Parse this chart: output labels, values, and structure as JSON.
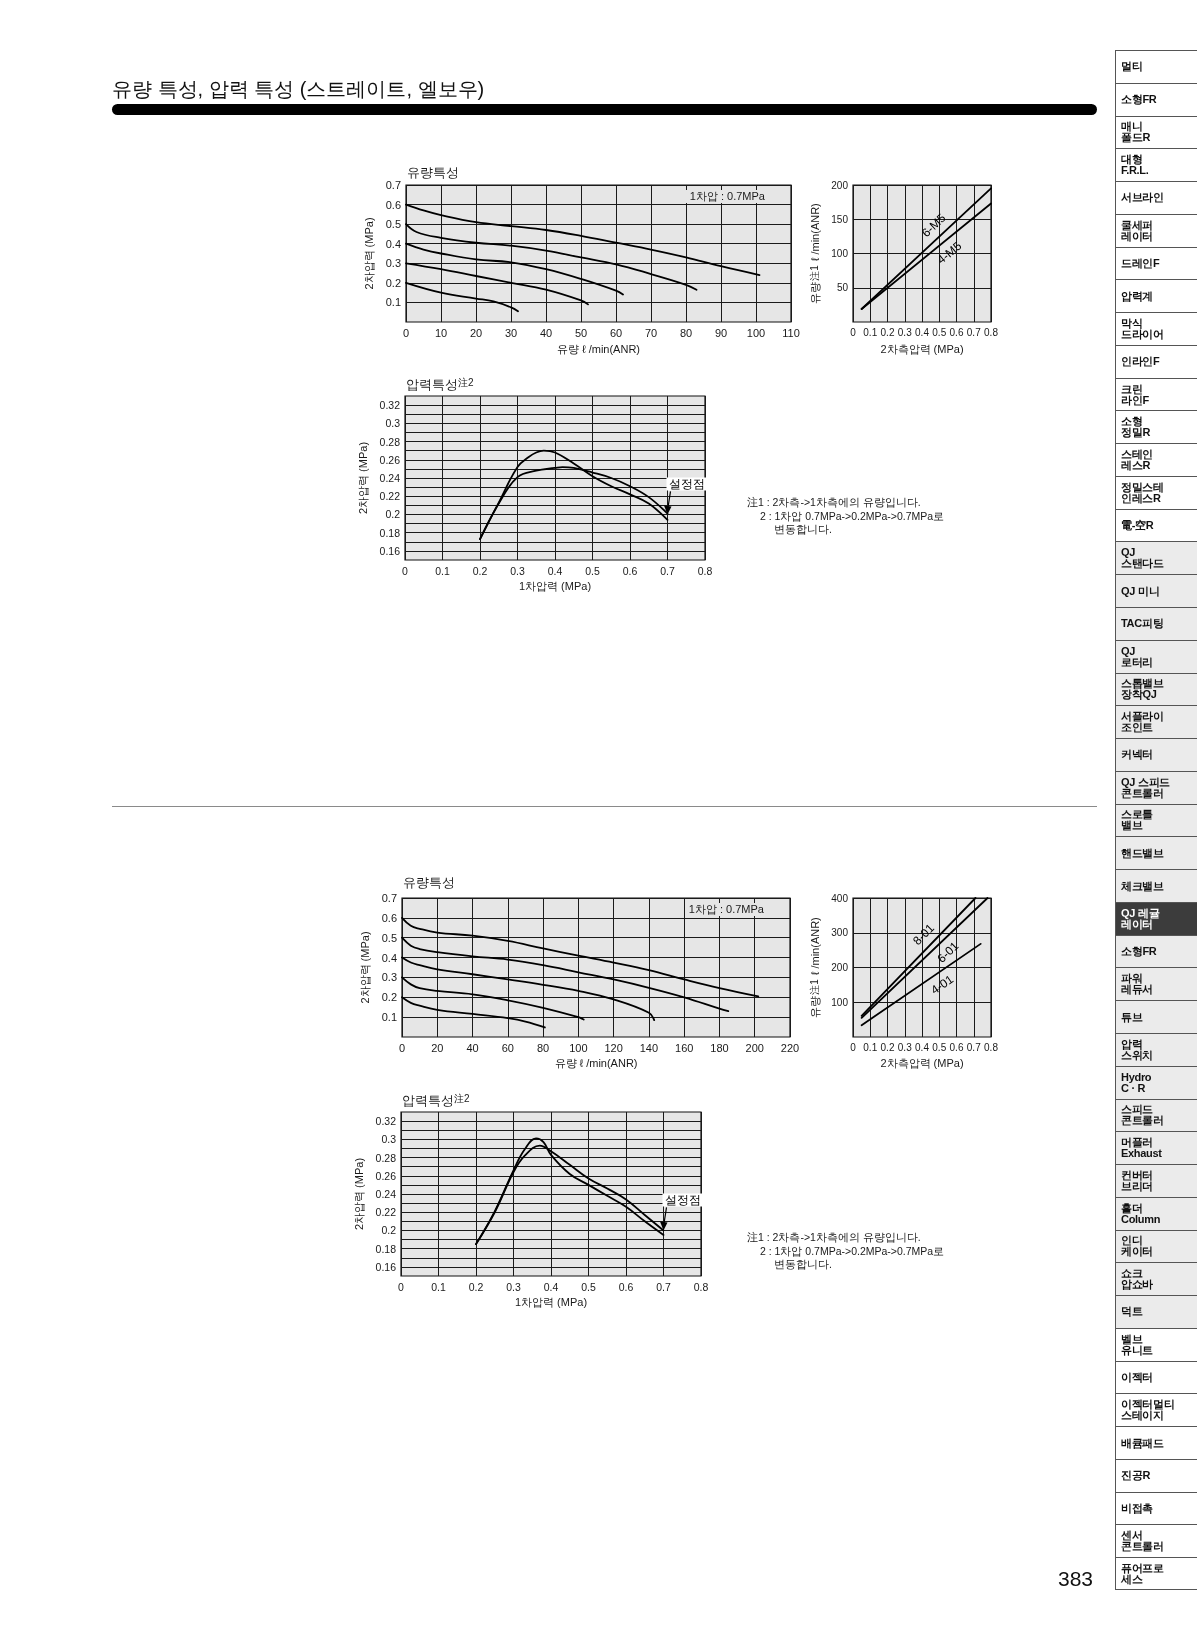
{
  "chart_data": [
    {
      "type": "other",
      "title": "유량 특성, 압력 특성 (스트레이트, 엘보우)"
    },
    {
      "type": "line",
      "title": "유량특성",
      "xlabel": "유량 ℓ /min(ANR)",
      "ylabel": "2차압력 (MPa)",
      "annotations": [
        "1차압 : 0.7MPa"
      ],
      "xlim": [
        0,
        110
      ],
      "xticks": [
        0,
        10,
        20,
        30,
        40,
        50,
        60,
        70,
        80,
        90,
        100,
        110
      ],
      "ylim": [
        0,
        0.7
      ],
      "yticks": [
        0.1,
        0.2,
        0.3,
        0.4,
        0.5,
        0.6,
        0.7
      ],
      "grid": true,
      "series": [
        {
          "color": "#000000",
          "x": [
            0,
            5,
            10,
            20,
            30,
            40,
            50,
            60,
            70,
            80,
            90,
            101
          ],
          "values": [
            0.6,
            0.57,
            0.546,
            0.51,
            0.49,
            0.47,
            0.44,
            0.405,
            0.37,
            0.33,
            0.285,
            0.24
          ]
        },
        {
          "color": "#000000",
          "x": [
            0,
            3,
            10,
            20,
            30,
            40,
            50,
            60,
            70,
            80,
            83
          ],
          "values": [
            0.5,
            0.46,
            0.43,
            0.405,
            0.39,
            0.365,
            0.33,
            0.295,
            0.245,
            0.19,
            0.165
          ]
        },
        {
          "color": "#000000",
          "x": [
            0,
            5,
            10,
            20,
            30,
            40,
            50,
            60,
            62
          ],
          "values": [
            0.4,
            0.37,
            0.35,
            0.32,
            0.305,
            0.27,
            0.22,
            0.16,
            0.14
          ]
        },
        {
          "color": "#000000",
          "x": [
            0,
            10,
            20,
            30,
            40,
            50,
            52
          ],
          "values": [
            0.3,
            0.27,
            0.235,
            0.2,
            0.165,
            0.11,
            0.09
          ]
        },
        {
          "color": "#000000",
          "x": [
            0,
            10,
            20,
            25,
            30,
            32
          ],
          "values": [
            0.2,
            0.15,
            0.12,
            0.105,
            0.075,
            0.055
          ]
        }
      ]
    },
    {
      "type": "line",
      "xlabel": "2차측압력 (MPa)",
      "ylabel": "유량$^{注1}$ ℓ /min(ANR)",
      "xlim": [
        0,
        0.8
      ],
      "xticks": [
        0,
        0.1,
        0.2,
        0.3,
        0.4,
        0.5,
        0.6,
        0.7,
        0.8
      ],
      "ylim": [
        0,
        200
      ],
      "yticks": [
        50,
        100,
        150,
        200
      ],
      "grid": true,
      "series": [
        {
          "name": "6-M5",
          "color": "#000000",
          "x": [
            0.05,
            0.8
          ],
          "values": [
            19,
            195
          ]
        },
        {
          "name": "4-M5",
          "color": "#000000",
          "x": [
            0.05,
            0.8
          ],
          "values": [
            19,
            173
          ]
        }
      ]
    },
    {
      "type": "line",
      "title": "압력특성$^{注2}$",
      "xlabel": "1차압력 (MPa)",
      "ylabel": "2차압력 (MPa)",
      "annotations": [
        {
          "text": "설정점",
          "x": 0.7,
          "y": 0.2
        },
        "注1 : 2차측->1차측에의 유량입니다.",
        "2 : 1차압 0.7MPa->0.2MPa->0.7MPa로 변동합니다."
      ],
      "xlim": [
        0,
        0.8
      ],
      "xticks": [
        0,
        0.1,
        0.2,
        0.3,
        0.4,
        0.5,
        0.6,
        0.7,
        0.8
      ],
      "ylim": [
        0.15,
        0.33
      ],
      "yticks": [
        0.16,
        {
          "value": 0.17,
          "label": null
        },
        0.18,
        {
          "value": 0.19,
          "label": null
        },
        0.2,
        {
          "value": 0.21,
          "label": null
        },
        0.22,
        {
          "value": 0.23,
          "label": null
        },
        0.24,
        {
          "value": 0.25,
          "label": null
        },
        0.26,
        {
          "value": 0.27,
          "label": null
        },
        0.28,
        {
          "value": 0.29,
          "label": null
        },
        0.3,
        {
          "value": 0.31,
          "label": null
        },
        0.32
      ],
      "grid": true,
      "series": [
        {
          "color": "#000000",
          "x": [
            0.2,
            0.25,
            0.3,
            0.33,
            0.35,
            0.37,
            0.4,
            0.45,
            0.5,
            0.55,
            0.6,
            0.65,
            0.7
          ],
          "values": [
            0.173,
            0.213,
            0.252,
            0.263,
            0.268,
            0.27,
            0.268,
            0.256,
            0.242,
            0.231,
            0.222,
            0.212,
            0.194
          ]
        },
        {
          "color": "#000000",
          "x": [
            0.2,
            0.25,
            0.3,
            0.35,
            0.4,
            0.42,
            0.45,
            0.5,
            0.55,
            0.6,
            0.65,
            0.7
          ],
          "values": [
            0.173,
            0.212,
            0.241,
            0.248,
            0.251,
            0.252,
            0.251,
            0.246,
            0.24,
            0.231,
            0.219,
            0.201
          ]
        }
      ]
    },
    {
      "type": "line",
      "title": "유량특성",
      "xlabel": "유량 ℓ /min(ANR)",
      "ylabel": "2차압력 (MPa)",
      "annotations": [
        "1차압 : 0.7MPa"
      ],
      "xlim": [
        0,
        220
      ],
      "xticks": [
        0,
        20,
        40,
        60,
        80,
        100,
        120,
        140,
        160,
        180,
        200,
        220
      ],
      "ylim": [
        0,
        0.7
      ],
      "yticks": [
        0.1,
        0.2,
        0.3,
        0.4,
        0.5,
        0.6,
        0.7
      ],
      "grid": true,
      "series": [
        {
          "color": "#000000",
          "x": [
            0,
            5,
            10,
            20,
            40,
            60,
            80,
            100,
            120,
            140,
            160,
            180,
            202
          ],
          "values": [
            0.6,
            0.56,
            0.545,
            0.526,
            0.51,
            0.484,
            0.446,
            0.41,
            0.375,
            0.337,
            0.29,
            0.246,
            0.204
          ]
        },
        {
          "color": "#000000",
          "x": [
            0,
            5,
            10,
            20,
            40,
            60,
            80,
            100,
            120,
            140,
            160,
            180,
            185
          ],
          "values": [
            0.5,
            0.46,
            0.443,
            0.427,
            0.406,
            0.39,
            0.362,
            0.326,
            0.29,
            0.248,
            0.2,
            0.143,
            0.13
          ]
        },
        {
          "color": "#000000",
          "x": [
            0,
            5,
            10,
            20,
            40,
            60,
            80,
            100,
            120,
            140,
            143
          ],
          "values": [
            0.4,
            0.375,
            0.362,
            0.341,
            0.316,
            0.29,
            0.263,
            0.232,
            0.189,
            0.122,
            0.085
          ]
        },
        {
          "color": "#000000",
          "x": [
            0,
            5,
            10,
            20,
            40,
            60,
            80,
            100,
            103
          ],
          "values": [
            0.3,
            0.265,
            0.246,
            0.232,
            0.215,
            0.185,
            0.147,
            0.1,
            0.088
          ]
        },
        {
          "color": "#000000",
          "x": [
            0,
            5,
            10,
            20,
            40,
            60,
            70,
            81
          ],
          "values": [
            0.2,
            0.172,
            0.158,
            0.137,
            0.116,
            0.095,
            0.078,
            0.048
          ]
        }
      ]
    },
    {
      "type": "line",
      "xlabel": "2차측압력 (MPa)",
      "ylabel": "유량$^{注1}$ ℓ /min(ANR)",
      "xlim": [
        0,
        0.8
      ],
      "xticks": [
        0,
        0.1,
        0.2,
        0.3,
        0.4,
        0.5,
        0.6,
        0.7,
        0.8
      ],
      "ylim": [
        0,
        400
      ],
      "yticks": [
        100,
        200,
        300,
        400
      ],
      "grid": true,
      "series": [
        {
          "name": "8-01",
          "color": "#000000",
          "x": [
            0.05,
            0.71
          ],
          "values": [
            61,
            400
          ]
        },
        {
          "name": "6-01",
          "color": "#000000",
          "x": [
            0.05,
            0.78
          ],
          "values": [
            55,
            400
          ]
        },
        {
          "name": "4-01",
          "color": "#000000",
          "x": [
            0.05,
            0.74
          ],
          "values": [
            34,
            268
          ]
        }
      ]
    },
    {
      "type": "line",
      "title": "압력특성$^{注2}$",
      "xlabel": "1차압력 (MPa)",
      "ylabel": "2차압력 (MPa)",
      "annotations": [
        {
          "text": "설정점",
          "x": 0.7,
          "y": 0.2
        },
        "注1 : 2차측->1차측에의 유량입니다.",
        "2 : 1차압 0.7MPa->0.2MPa->0.7MPa로 변동합니다."
      ],
      "xlim": [
        0,
        0.8
      ],
      "xticks": [
        0,
        0.1,
        0.2,
        0.3,
        0.4,
        0.5,
        0.6,
        0.7,
        0.8
      ],
      "ylim": [
        0.15,
        0.33
      ],
      "yticks": [
        0.16,
        {
          "value": 0.17,
          "label": null
        },
        0.18,
        {
          "value": 0.19,
          "label": null
        },
        0.2,
        {
          "value": 0.21,
          "label": null
        },
        0.22,
        {
          "value": 0.23,
          "label": null
        },
        0.24,
        {
          "value": 0.25,
          "label": null
        },
        0.26,
        {
          "value": 0.27,
          "label": null
        },
        0.28,
        {
          "value": 0.29,
          "label": null
        },
        0.3,
        {
          "value": 0.31,
          "label": null
        },
        0.32
      ],
      "grid": true,
      "series": [
        {
          "color": "#000000",
          "x": [
            0.2,
            0.25,
            0.3,
            0.33,
            0.36,
            0.38,
            0.4,
            0.45,
            0.5,
            0.55,
            0.6,
            0.65,
            0.7
          ],
          "values": [
            0.185,
            0.221,
            0.266,
            0.289,
            0.301,
            0.297,
            0.283,
            0.262,
            0.25,
            0.238,
            0.226,
            0.21,
            0.195
          ]
        },
        {
          "color": "#000000",
          "x": [
            0.2,
            0.25,
            0.3,
            0.33,
            0.37,
            0.4,
            0.45,
            0.5,
            0.55,
            0.6,
            0.65,
            0.7
          ],
          "values": [
            0.185,
            0.22,
            0.264,
            0.282,
            0.293,
            0.287,
            0.272,
            0.257,
            0.246,
            0.234,
            0.217,
            0.2
          ]
        }
      ]
    },
    {
      "type": "other",
      "categories": [
        "멀티",
        "소형FR",
        "매니\n폴드R",
        "대형\nF.R.L.",
        "서브라인",
        "쿨세퍼\n레이터",
        "드레인F",
        "압력계",
        "막식\n드라이어",
        "인라인F",
        "크린\n라인F",
        "소형\n정밀R",
        "스테인\n레스R",
        "정밀스테\n인레스R",
        "電-空R",
        "QJ\n스탠다드",
        "QJ 미니",
        "TAC피팅",
        "QJ\n로터리",
        "스톱밸브\n장착QJ",
        "서플라이\n조인트",
        "커넥터",
        "QJ 스피드\n콘트롤러",
        "스로틀\n밸브",
        "핸드밸브",
        "체크밸브",
        "QJ 레귤\n레이터",
        "소형FR",
        "파워\n레듀서",
        "튜브",
        "압력\n스위치",
        "Hydro\nC · R",
        "스피드\n콘트롤러",
        "머플러\nExhaust",
        "컨버터\n브리더",
        "홀더\nColumn",
        "인디\n케이터",
        "쇼크\n압쇼바",
        "덕트",
        "벨브\n유니트",
        "이젝터",
        "이젝터멀티\n스테이지",
        "배큠패드",
        "진공R",
        "비접촉",
        "센서\n콘트롤러",
        "퓨어프로\n세스"
      ],
      "colors": [
        "#ffffff",
        "#ffffff",
        "#ffffff",
        "#ffffff",
        "#ffffff",
        "#ffffff",
        "#ffffff",
        "#ffffff",
        "#ffffff",
        "#ffffff",
        "#ffffff",
        "#ffffff",
        "#ffffff",
        "#ffffff",
        "#ffffff",
        "#ebebeb",
        "#ebebeb",
        "#ebebeb",
        "#ebebeb",
        "#ebebeb",
        "#ebebeb",
        "#ebebeb",
        "#ebebeb",
        "#ebebeb",
        "#ebebeb",
        "#ebebeb",
        "#3c3c3c",
        "#ebebeb",
        "#ebebeb",
        "#ebebeb",
        "#ebebeb",
        "#ebebeb",
        "#ebebeb",
        "#ebebeb",
        "#ebebeb",
        "#ebebeb",
        "#ebebeb",
        "#ebebeb",
        "#ebebeb",
        "#ffffff",
        "#ffffff",
        "#ffffff",
        "#ffffff",
        "#ffffff",
        "#ffffff",
        "#ffffff",
        "#ffffff"
      ],
      "annotations": [
        "383"
      ]
    }
  ]
}
